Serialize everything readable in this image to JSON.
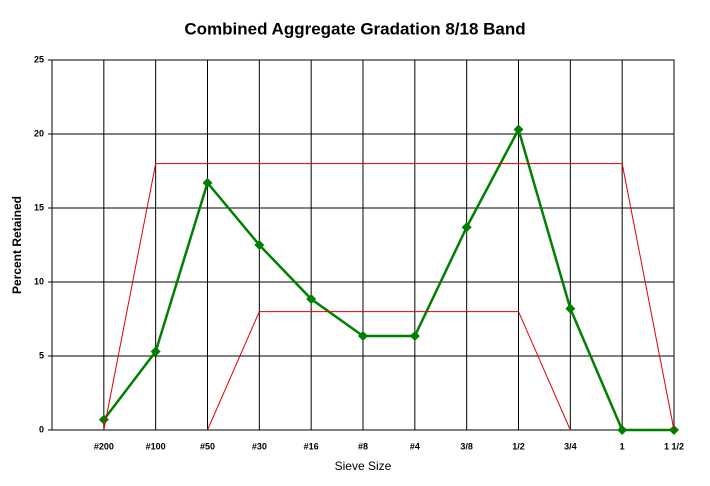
{
  "chart_data": {
    "type": "line",
    "title": "Combined Aggregate Gradation 8/18 Band",
    "x_label": "Sieve Size",
    "y_label": "Percent Retained",
    "categories": [
      "#200",
      "#100",
      "#50",
      "#30",
      "#16",
      "#8",
      "#4",
      "3/8",
      "1/2",
      "3/4",
      "1",
      "1 1/2"
    ],
    "series": [
      {
        "color": "#008000",
        "marker": "diamond",
        "values": [
          0.7,
          5.3,
          16.7,
          12.5,
          8.85,
          6.35,
          6.35,
          13.7,
          20.3,
          8.2,
          0,
          0
        ]
      },
      {
        "color": "#e00000",
        "values": [
          0,
          18,
          18,
          18,
          18,
          18,
          18,
          18,
          18,
          18,
          18,
          0
        ]
      },
      {
        "color": "#e00000",
        "values": [
          null,
          null,
          0,
          8,
          8,
          8,
          8,
          8,
          8,
          0,
          null,
          null
        ]
      }
    ],
    "ylim": [
      0,
      25
    ],
    "yticks": [
      0,
      5,
      10,
      15,
      20,
      25
    ],
    "grid": true
  }
}
